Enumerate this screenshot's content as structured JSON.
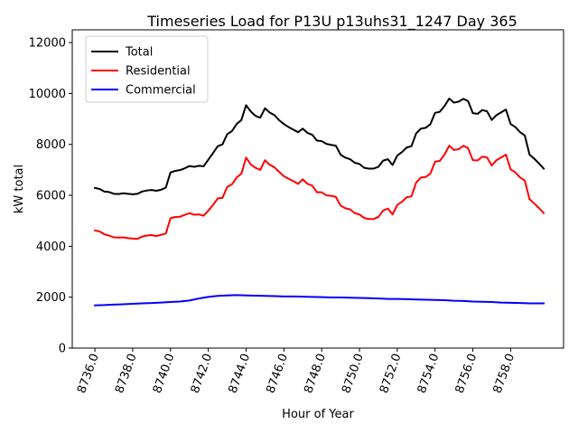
{
  "chart_data": {
    "type": "line",
    "title": "Timeseries Load for P13U p13uhs31_1247  Day 365",
    "xlabel": "Hour of Year",
    "ylabel": "kW total",
    "xlim": [
      8734.8,
      8760.8
    ],
    "ylim": [
      0,
      12500
    ],
    "xticks": [
      8736,
      8738,
      8740,
      8742,
      8744,
      8746,
      8748,
      8750,
      8752,
      8754,
      8756,
      8758
    ],
    "xtick_labels": [
      "8736.0",
      "8738.0",
      "8740.0",
      "8742.0",
      "8744.0",
      "8746.0",
      "8748.0",
      "8750.0",
      "8752.0",
      "8754.0",
      "8756.0",
      "8758.0"
    ],
    "yticks": [
      0,
      2000,
      4000,
      6000,
      8000,
      10000,
      12000
    ],
    "ytick_labels": [
      "0",
      "2000",
      "4000",
      "6000",
      "8000",
      "10000",
      "12000"
    ],
    "legend_position": "upper-left",
    "grid": false,
    "series": [
      {
        "name": "Total",
        "color": "#000000",
        "points": [
          [
            8736.0,
            6290
          ],
          [
            8736.25,
            6250
          ],
          [
            8736.5,
            6150
          ],
          [
            8736.75,
            6130
          ],
          [
            8737.0,
            6060
          ],
          [
            8737.25,
            6050
          ],
          [
            8737.5,
            6080
          ],
          [
            8737.75,
            6060
          ],
          [
            8738.0,
            6040
          ],
          [
            8738.25,
            6060
          ],
          [
            8738.5,
            6150
          ],
          [
            8738.75,
            6190
          ],
          [
            8739.0,
            6210
          ],
          [
            8739.25,
            6180
          ],
          [
            8739.5,
            6220
          ],
          [
            8739.75,
            6300
          ],
          [
            8740.0,
            6900
          ],
          [
            8740.25,
            6960
          ],
          [
            8740.5,
            6990
          ],
          [
            8740.75,
            7060
          ],
          [
            8741.0,
            7150
          ],
          [
            8741.25,
            7120
          ],
          [
            8741.5,
            7160
          ],
          [
            8741.75,
            7140
          ],
          [
            8742.0,
            7400
          ],
          [
            8742.25,
            7660
          ],
          [
            8742.5,
            7930
          ],
          [
            8742.75,
            8000
          ],
          [
            8743.0,
            8400
          ],
          [
            8743.25,
            8520
          ],
          [
            8743.5,
            8800
          ],
          [
            8743.75,
            8960
          ],
          [
            8744.0,
            9540
          ],
          [
            8744.25,
            9290
          ],
          [
            8744.5,
            9120
          ],
          [
            8744.75,
            9050
          ],
          [
            8745.0,
            9420
          ],
          [
            8745.25,
            9250
          ],
          [
            8745.5,
            9150
          ],
          [
            8745.75,
            8950
          ],
          [
            8746.0,
            8800
          ],
          [
            8746.25,
            8680
          ],
          [
            8746.5,
            8580
          ],
          [
            8746.75,
            8480
          ],
          [
            8747.0,
            8620
          ],
          [
            8747.25,
            8450
          ],
          [
            8747.5,
            8380
          ],
          [
            8747.75,
            8150
          ],
          [
            8748.0,
            8130
          ],
          [
            8748.25,
            8020
          ],
          [
            8748.5,
            7980
          ],
          [
            8748.75,
            7950
          ],
          [
            8749.0,
            7600
          ],
          [
            8749.25,
            7480
          ],
          [
            8749.5,
            7420
          ],
          [
            8749.75,
            7280
          ],
          [
            8750.0,
            7230
          ],
          [
            8750.25,
            7080
          ],
          [
            8750.5,
            7050
          ],
          [
            8750.75,
            7050
          ],
          [
            8751.0,
            7120
          ],
          [
            8751.25,
            7360
          ],
          [
            8751.5,
            7420
          ],
          [
            8751.75,
            7190
          ],
          [
            8752.0,
            7560
          ],
          [
            8752.25,
            7700
          ],
          [
            8752.5,
            7880
          ],
          [
            8752.75,
            7930
          ],
          [
            8753.0,
            8430
          ],
          [
            8753.25,
            8620
          ],
          [
            8753.5,
            8650
          ],
          [
            8753.75,
            8790
          ],
          [
            8754.0,
            9240
          ],
          [
            8754.25,
            9280
          ],
          [
            8754.5,
            9510
          ],
          [
            8754.75,
            9800
          ],
          [
            8755.0,
            9640
          ],
          [
            8755.25,
            9680
          ],
          [
            8755.5,
            9790
          ],
          [
            8755.75,
            9700
          ],
          [
            8756.0,
            9230
          ],
          [
            8756.25,
            9200
          ],
          [
            8756.5,
            9350
          ],
          [
            8756.75,
            9300
          ],
          [
            8757.0,
            8960
          ],
          [
            8757.25,
            9150
          ],
          [
            8757.5,
            9260
          ],
          [
            8757.75,
            9370
          ],
          [
            8758.0,
            8800
          ],
          [
            8758.25,
            8680
          ],
          [
            8758.5,
            8480
          ],
          [
            8758.75,
            8350
          ],
          [
            8759.0,
            7600
          ],
          [
            8759.25,
            7440
          ],
          [
            8759.5,
            7250
          ],
          [
            8759.75,
            7050
          ]
        ]
      },
      {
        "name": "Residential",
        "color": "#ff0000",
        "points": [
          [
            8736.0,
            4620
          ],
          [
            8736.25,
            4580
          ],
          [
            8736.5,
            4470
          ],
          [
            8736.75,
            4420
          ],
          [
            8737.0,
            4350
          ],
          [
            8737.25,
            4340
          ],
          [
            8737.5,
            4350
          ],
          [
            8737.75,
            4320
          ],
          [
            8738.0,
            4300
          ],
          [
            8738.25,
            4290
          ],
          [
            8738.5,
            4380
          ],
          [
            8738.75,
            4420
          ],
          [
            8739.0,
            4440
          ],
          [
            8739.25,
            4400
          ],
          [
            8739.5,
            4450
          ],
          [
            8739.75,
            4500
          ],
          [
            8740.0,
            5100
          ],
          [
            8740.25,
            5150
          ],
          [
            8740.5,
            5160
          ],
          [
            8740.75,
            5230
          ],
          [
            8741.0,
            5300
          ],
          [
            8741.25,
            5240
          ],
          [
            8741.5,
            5250
          ],
          [
            8741.75,
            5200
          ],
          [
            8742.0,
            5400
          ],
          [
            8742.25,
            5620
          ],
          [
            8742.5,
            5880
          ],
          [
            8742.75,
            5900
          ],
          [
            8743.0,
            6330
          ],
          [
            8743.25,
            6430
          ],
          [
            8743.5,
            6700
          ],
          [
            8743.75,
            6850
          ],
          [
            8744.0,
            7480
          ],
          [
            8744.25,
            7210
          ],
          [
            8744.5,
            7080
          ],
          [
            8744.75,
            7000
          ],
          [
            8745.0,
            7380
          ],
          [
            8745.25,
            7200
          ],
          [
            8745.5,
            7100
          ],
          [
            8745.75,
            6920
          ],
          [
            8746.0,
            6750
          ],
          [
            8746.25,
            6650
          ],
          [
            8746.5,
            6560
          ],
          [
            8746.75,
            6450
          ],
          [
            8747.0,
            6630
          ],
          [
            8747.25,
            6450
          ],
          [
            8747.5,
            6380
          ],
          [
            8747.75,
            6120
          ],
          [
            8748.0,
            6120
          ],
          [
            8748.25,
            6000
          ],
          [
            8748.5,
            5980
          ],
          [
            8748.75,
            5940
          ],
          [
            8749.0,
            5600
          ],
          [
            8749.25,
            5490
          ],
          [
            8749.5,
            5450
          ],
          [
            8749.75,
            5300
          ],
          [
            8750.0,
            5250
          ],
          [
            8750.25,
            5110
          ],
          [
            8750.5,
            5070
          ],
          [
            8750.75,
            5070
          ],
          [
            8751.0,
            5150
          ],
          [
            8751.25,
            5400
          ],
          [
            8751.5,
            5480
          ],
          [
            8751.75,
            5250
          ],
          [
            8752.0,
            5620
          ],
          [
            8752.25,
            5750
          ],
          [
            8752.5,
            5920
          ],
          [
            8752.75,
            5960
          ],
          [
            8753.0,
            6500
          ],
          [
            8753.25,
            6700
          ],
          [
            8753.5,
            6720
          ],
          [
            8753.75,
            6850
          ],
          [
            8754.0,
            7320
          ],
          [
            8754.25,
            7350
          ],
          [
            8754.5,
            7600
          ],
          [
            8754.75,
            7950
          ],
          [
            8755.0,
            7780
          ],
          [
            8755.25,
            7810
          ],
          [
            8755.5,
            7950
          ],
          [
            8755.75,
            7850
          ],
          [
            8756.0,
            7380
          ],
          [
            8756.25,
            7370
          ],
          [
            8756.5,
            7520
          ],
          [
            8756.75,
            7490
          ],
          [
            8757.0,
            7170
          ],
          [
            8757.25,
            7380
          ],
          [
            8757.5,
            7490
          ],
          [
            8757.75,
            7600
          ],
          [
            8758.0,
            7020
          ],
          [
            8758.25,
            6900
          ],
          [
            8758.5,
            6700
          ],
          [
            8758.75,
            6580
          ],
          [
            8759.0,
            5850
          ],
          [
            8759.25,
            5680
          ],
          [
            8759.5,
            5500
          ],
          [
            8759.75,
            5300
          ]
        ]
      },
      {
        "name": "Commercial",
        "color": "#0000ff",
        "points": [
          [
            8736.0,
            1680
          ],
          [
            8736.5,
            1690
          ],
          [
            8737.0,
            1710
          ],
          [
            8737.5,
            1720
          ],
          [
            8738.0,
            1740
          ],
          [
            8738.5,
            1760
          ],
          [
            8739.0,
            1770
          ],
          [
            8739.5,
            1790
          ],
          [
            8740.0,
            1810
          ],
          [
            8740.5,
            1830
          ],
          [
            8741.0,
            1870
          ],
          [
            8741.5,
            1950
          ],
          [
            8742.0,
            2010
          ],
          [
            8742.5,
            2050
          ],
          [
            8743.0,
            2070
          ],
          [
            8743.5,
            2080
          ],
          [
            8744.0,
            2070
          ],
          [
            8744.5,
            2060
          ],
          [
            8745.0,
            2050
          ],
          [
            8745.5,
            2040
          ],
          [
            8746.0,
            2030
          ],
          [
            8746.5,
            2030
          ],
          [
            8747.0,
            2020
          ],
          [
            8747.5,
            2010
          ],
          [
            8748.0,
            2000
          ],
          [
            8748.5,
            1990
          ],
          [
            8749.0,
            1990
          ],
          [
            8749.5,
            1980
          ],
          [
            8750.0,
            1970
          ],
          [
            8750.5,
            1960
          ],
          [
            8751.0,
            1950
          ],
          [
            8751.5,
            1930
          ],
          [
            8752.0,
            1930
          ],
          [
            8752.5,
            1920
          ],
          [
            8753.0,
            1910
          ],
          [
            8753.5,
            1900
          ],
          [
            8754.0,
            1890
          ],
          [
            8754.5,
            1880
          ],
          [
            8755.0,
            1860
          ],
          [
            8755.5,
            1850
          ],
          [
            8756.0,
            1830
          ],
          [
            8756.5,
            1820
          ],
          [
            8757.0,
            1810
          ],
          [
            8757.5,
            1790
          ],
          [
            8758.0,
            1780
          ],
          [
            8758.5,
            1770
          ],
          [
            8759.0,
            1760
          ],
          [
            8759.5,
            1760
          ],
          [
            8759.75,
            1760
          ]
        ]
      }
    ]
  }
}
